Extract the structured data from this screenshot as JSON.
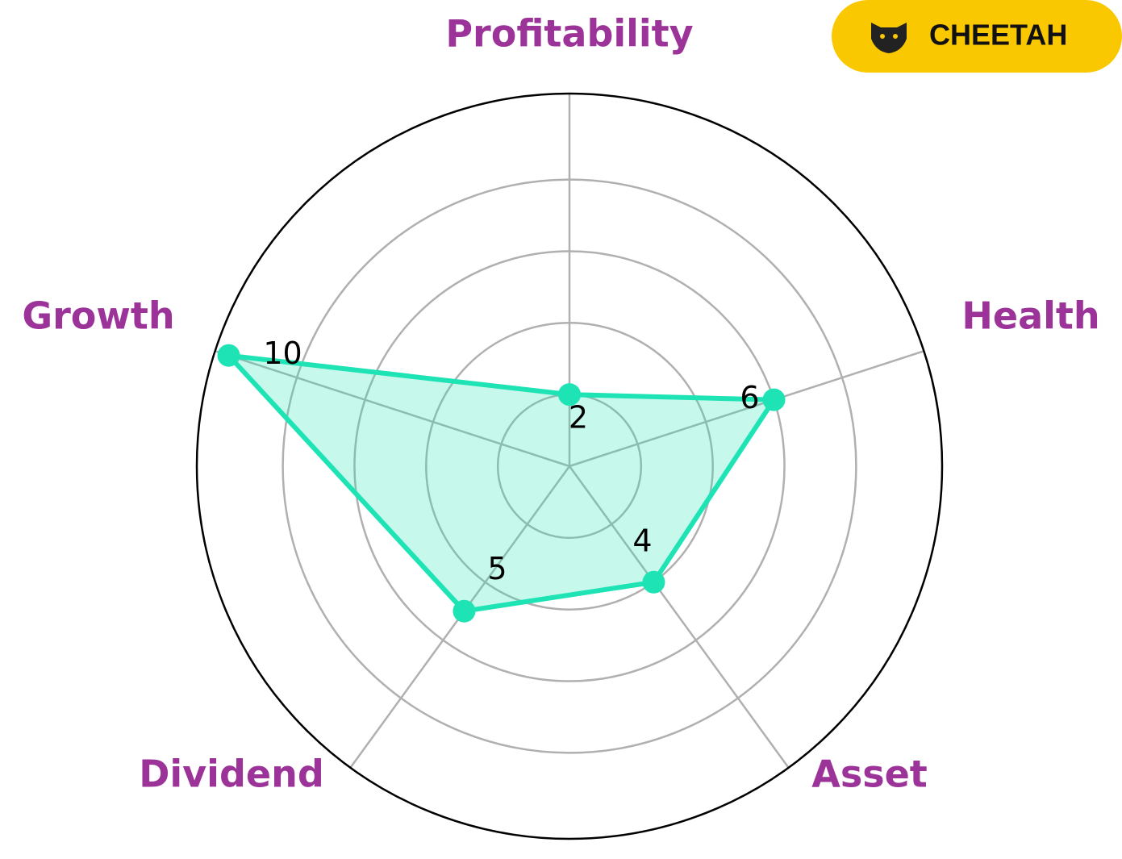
{
  "chart_data": {
    "type": "radar",
    "categories": [
      "Profitability",
      "Health",
      "Asset",
      "Dividend",
      "Growth"
    ],
    "values": [
      2,
      6,
      4,
      5,
      10
    ],
    "color": "#1ee3b4",
    "ylim": [
      0,
      10.4
    ],
    "yticks": [
      2,
      4,
      6,
      8
    ],
    "grid": true
  },
  "badge": {
    "label": "CHEETAH"
  }
}
